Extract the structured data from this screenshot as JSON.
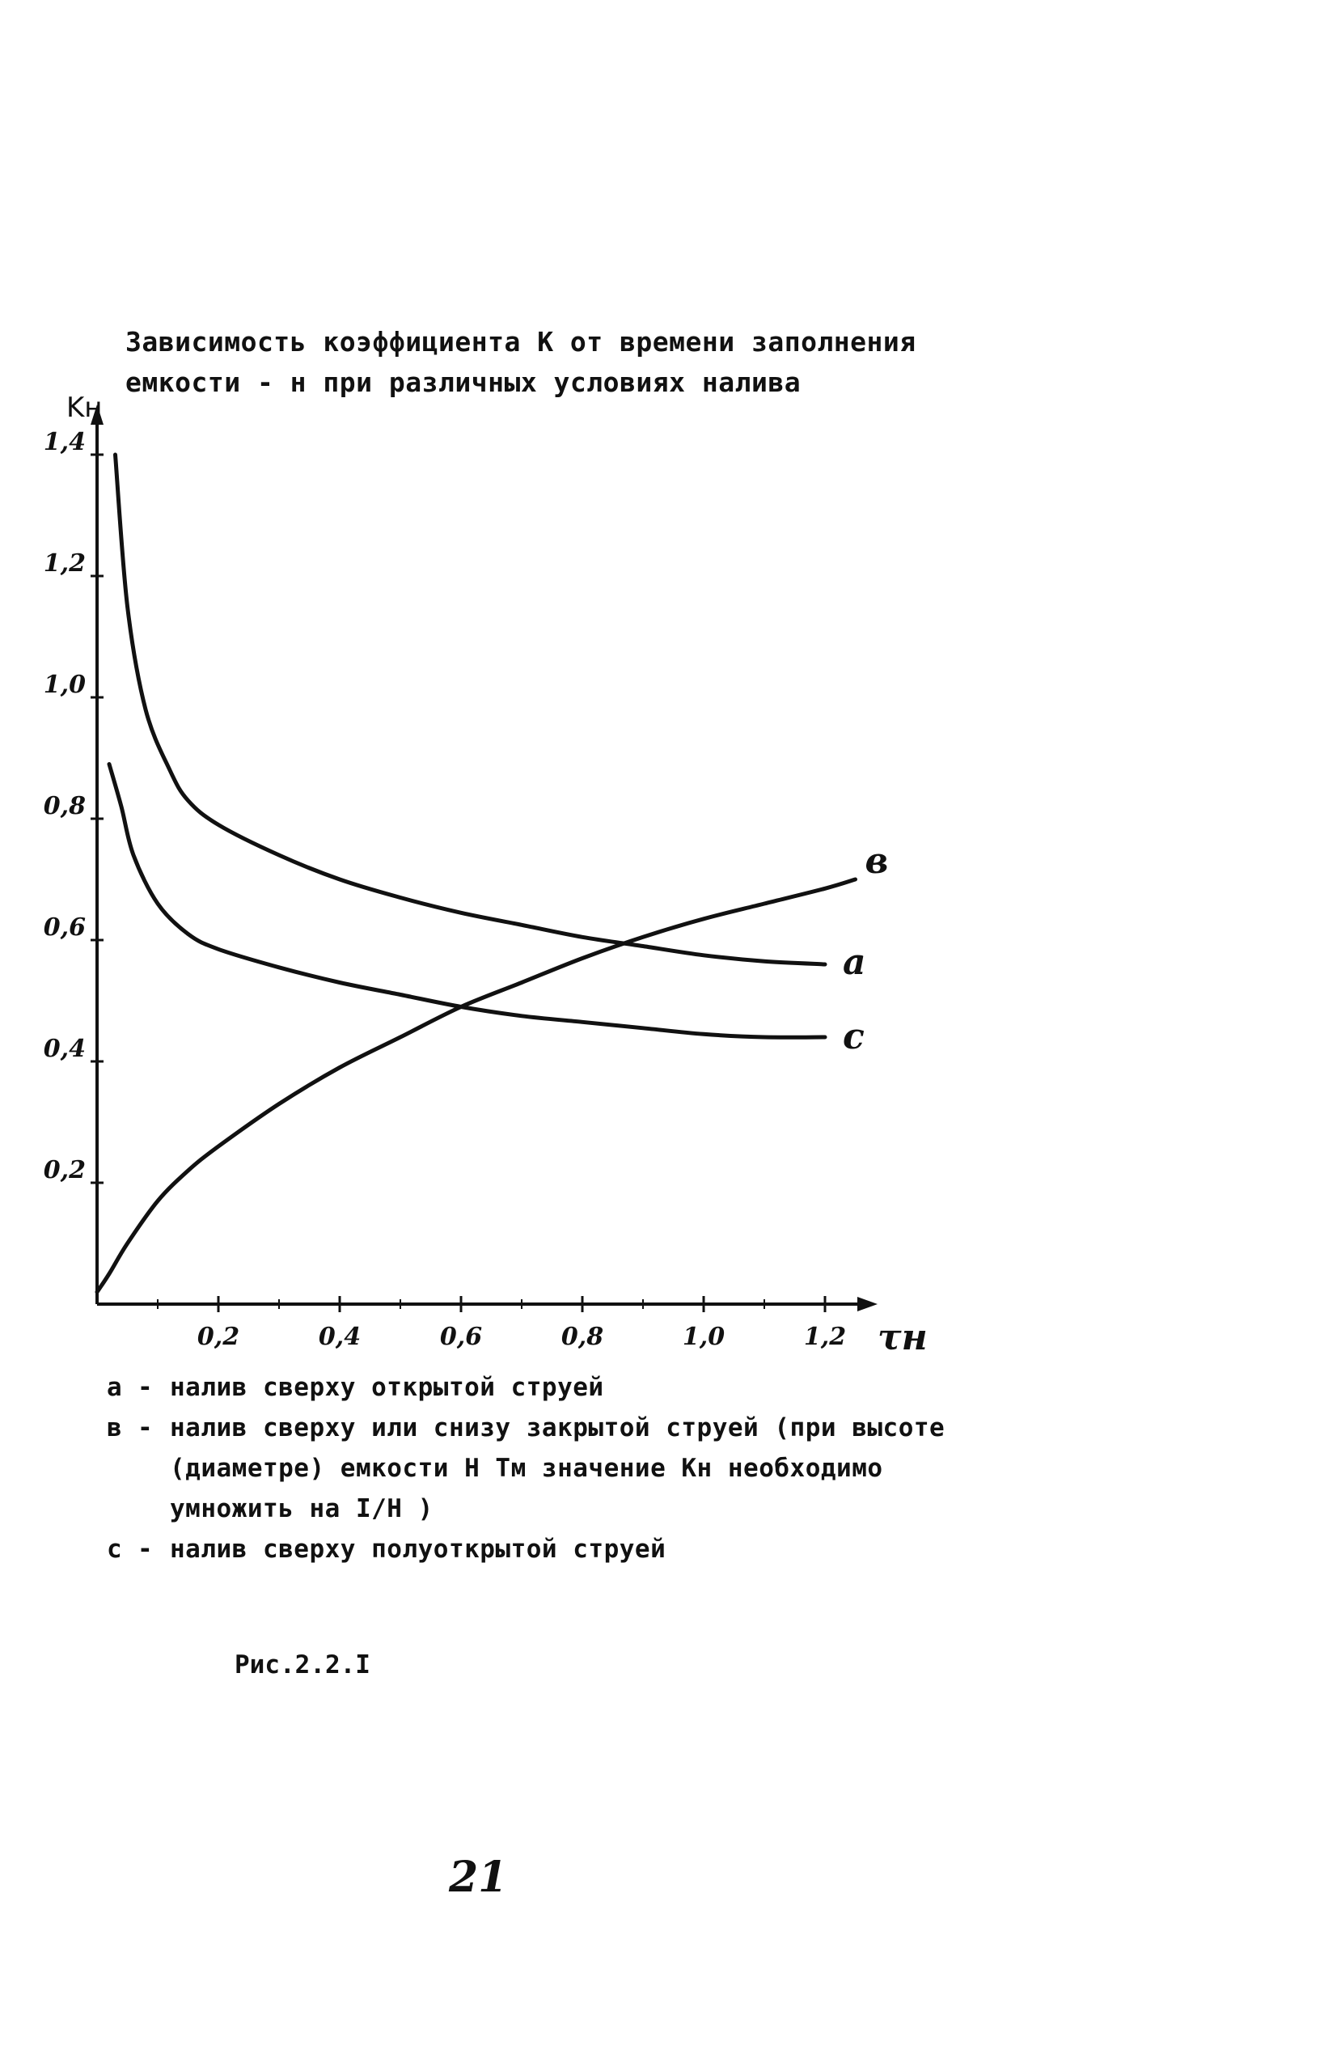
{
  "title": {
    "line1": "Зависимость коэффициента К от времени заполнения",
    "line2": "емкости    -  н при различных условиях налива"
  },
  "chart_data": {
    "type": "line",
    "ylabel": "Kн",
    "xlabel": "τн",
    "xlim": [
      0,
      1.3
    ],
    "ylim": [
      0,
      1.45
    ],
    "x_ticks": [
      0.2,
      0.4,
      0.6,
      0.8,
      1.0,
      1.2
    ],
    "x_tick_labels": [
      "0,2",
      "0,4",
      "0,6",
      "0,8",
      "1,0",
      "1,2"
    ],
    "y_ticks": [
      0.2,
      0.4,
      0.6,
      0.8,
      1.0,
      1.2,
      1.4
    ],
    "y_tick_labels": [
      "0,2",
      "0,4",
      "0,6",
      "0,8",
      "1,0",
      "1,2",
      "1,4"
    ],
    "grid": false,
    "series": [
      {
        "name": "a",
        "color": "#111111",
        "x": [
          0.03,
          0.05,
          0.08,
          0.12,
          0.15,
          0.2,
          0.3,
          0.4,
          0.5,
          0.6,
          0.7,
          0.8,
          0.9,
          1.0,
          1.1,
          1.2
        ],
        "y": [
          1.4,
          1.15,
          0.98,
          0.88,
          0.83,
          0.79,
          0.74,
          0.7,
          0.67,
          0.645,
          0.625,
          0.605,
          0.59,
          0.575,
          0.565,
          0.56
        ]
      },
      {
        "name": "в",
        "color": "#111111",
        "x": [
          0.0,
          0.02,
          0.05,
          0.1,
          0.15,
          0.2,
          0.3,
          0.4,
          0.5,
          0.6,
          0.7,
          0.8,
          0.9,
          1.0,
          1.1,
          1.2,
          1.25
        ],
        "y": [
          0.02,
          0.05,
          0.1,
          0.17,
          0.22,
          0.26,
          0.33,
          0.39,
          0.44,
          0.49,
          0.53,
          0.57,
          0.605,
          0.635,
          0.66,
          0.685,
          0.7
        ]
      },
      {
        "name": "c",
        "color": "#111111",
        "x": [
          0.02,
          0.04,
          0.06,
          0.1,
          0.15,
          0.2,
          0.3,
          0.4,
          0.5,
          0.6,
          0.7,
          0.8,
          0.9,
          1.0,
          1.1,
          1.2
        ],
        "y": [
          0.89,
          0.82,
          0.74,
          0.66,
          0.61,
          0.585,
          0.555,
          0.53,
          0.51,
          0.49,
          0.475,
          0.465,
          0.455,
          0.445,
          0.44,
          0.44
        ]
      }
    ],
    "series_labels": [
      "a",
      "в",
      "c"
    ]
  },
  "legend": {
    "a": {
      "key": "а",
      "dash": "-",
      "text": "налив сверху открытой струей"
    },
    "b": {
      "key": "в",
      "dash": "-",
      "text": "налив сверху или снизу закрытой струей (при высоте",
      "cont1": "(диаметре) емкости Н  Тм значение Кн необходимо",
      "cont2": "умножить на I/H )"
    },
    "c": {
      "key": "с",
      "dash": "-",
      "text": "налив сверху полуоткрытой струей"
    }
  },
  "caption": "Рис.2.2.I",
  "page_number": "21"
}
